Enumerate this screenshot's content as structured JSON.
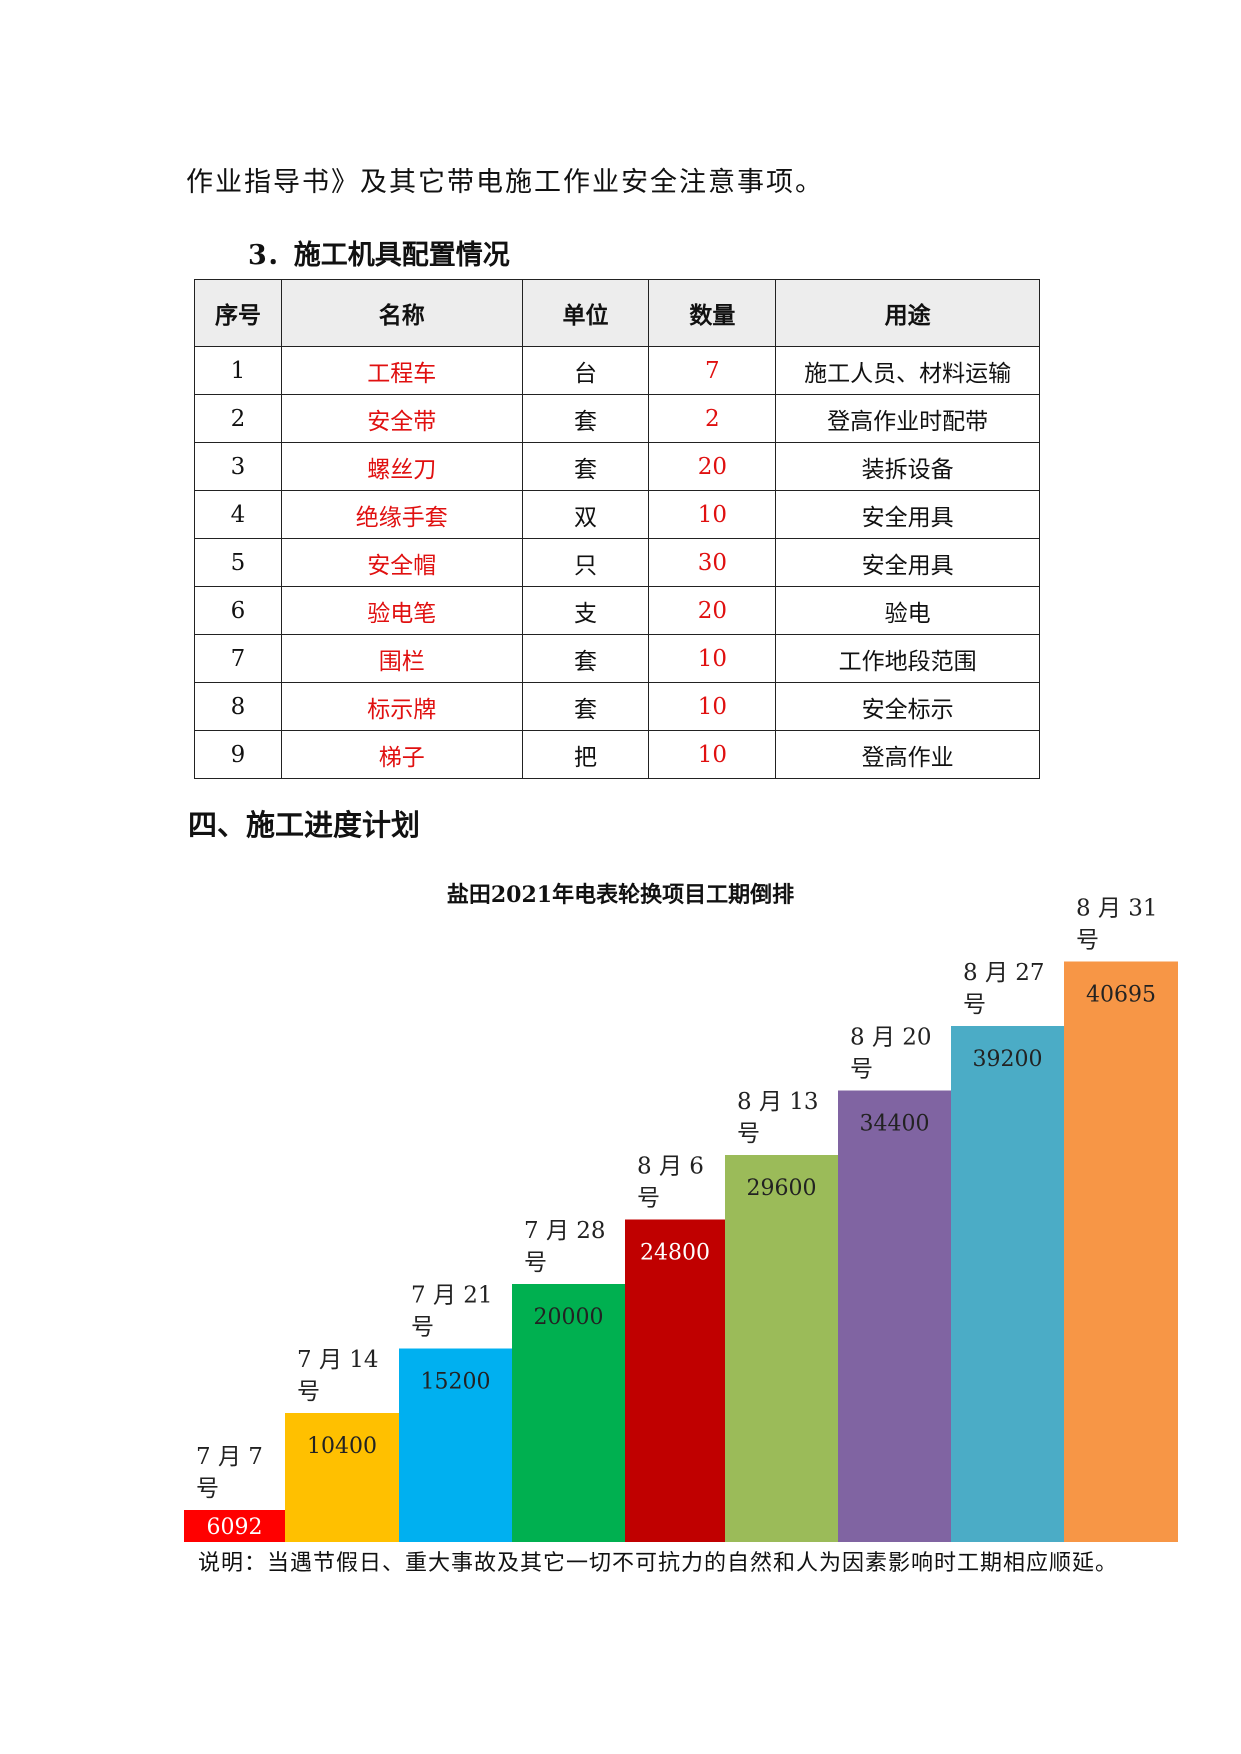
{
  "intro_text": "作业指导书》及其它带电施工作业安全注意事项。",
  "subsection_title": "3．施工机具配置情况",
  "table": {
    "headers": [
      "序号",
      "名称",
      "单位",
      "数量",
      "用途"
    ],
    "rows": [
      [
        "1",
        "工程车",
        "台",
        "7",
        "施工人员、材料运输"
      ],
      [
        "2",
        "安全带",
        "套",
        "2",
        "登高作业时配带"
      ],
      [
        "3",
        "螺丝刀",
        "套",
        "20",
        "装拆设备"
      ],
      [
        "4",
        "绝缘手套",
        "双",
        "10",
        "安全用具"
      ],
      [
        "5",
        "安全帽",
        "只",
        "30",
        "安全用具"
      ],
      [
        "6",
        "验电笔",
        "支",
        "20",
        "验电"
      ],
      [
        "7",
        "围栏",
        "套",
        "10",
        "工作地段范围"
      ],
      [
        "8",
        "标示牌",
        "套",
        "10",
        "安全标示"
      ],
      [
        "9",
        "梯子",
        "把",
        "10",
        "登高作业"
      ]
    ]
  },
  "section_title": "四、施工进度计划",
  "chart_data": {
    "type": "bar",
    "title": "盐田2021年电表轮换项目工期倒排",
    "categories": [
      "7月7号",
      "7月14号",
      "7月21号",
      "7月28号",
      "8月6号",
      "8月13号",
      "8月20号",
      "8月27号",
      "8月31号"
    ],
    "category_lines": [
      [
        "7 月 7",
        "号"
      ],
      [
        "7 月 14",
        "号"
      ],
      [
        "7 月 21",
        "号"
      ],
      [
        "7 月 28",
        "号"
      ],
      [
        "8 月 6",
        "号"
      ],
      [
        "8 月 13",
        "号"
      ],
      [
        "8 月 20",
        "号"
      ],
      [
        "8 月 27",
        "号"
      ],
      [
        "8 月 31",
        "号"
      ]
    ],
    "values": [
      6092,
      10400,
      15200,
      20000,
      24800,
      29600,
      34400,
      39200,
      40695
    ],
    "value_labels": [
      "6092",
      "10400",
      "15200",
      "20000",
      "24800",
      "29600",
      "34400",
      "39200",
      "40695"
    ],
    "colors": [
      "#ff0000",
      "#ffc000",
      "#00b0f0",
      "#00b050",
      "#c00000",
      "#9bbb59",
      "#8064a2",
      "#4bacc6",
      "#f79646"
    ],
    "steps_shown": [
      1,
      2,
      3,
      4,
      5,
      6,
      7,
      8,
      9
    ],
    "xlabel": "",
    "ylabel": ""
  },
  "note": "说明：当遇节假日、重大事故及其它一切不可抗力的自然和人为因素影响时工期相应顺延。"
}
